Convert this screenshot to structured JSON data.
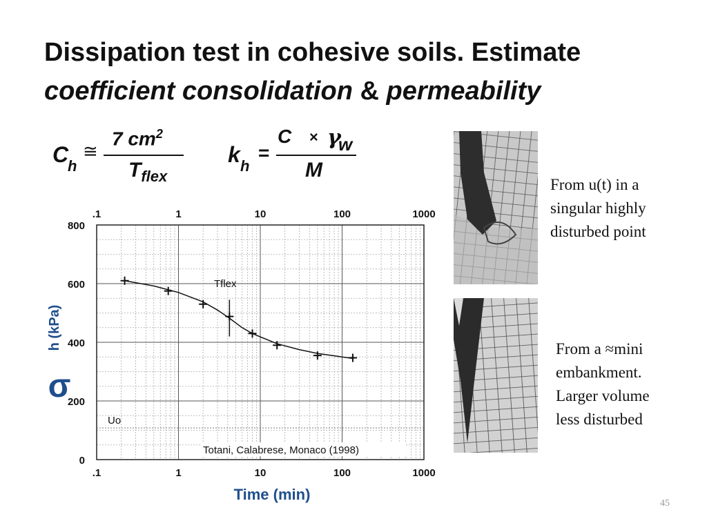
{
  "slide": {
    "title_line1": "Dissipation test in cohesive soils. Estimate",
    "title_line2_a": "coefficient consolidation",
    "title_line2_b": " & ",
    "title_line2_c": "permeability",
    "page_number": "45"
  },
  "formulas": {
    "ch": {
      "lhs": "C",
      "lhs_sub": "h",
      "approx": "≅",
      "numerator": "7 cm",
      "numerator_sup": "2",
      "denominator": "T",
      "denominator_sub": "flex"
    },
    "kh": {
      "lhs": "k",
      "lhs_sub": "h",
      "equals": "=",
      "numerator_a": "C",
      "times": "×",
      "gamma": "γ",
      "gamma_sub": "w",
      "denominator": "M"
    }
  },
  "captions": {
    "top": [
      "From u(t) in a",
      "singular highly",
      "disturbed point"
    ],
    "bottom": [
      "From a ≈mini",
      "embankment.",
      "Larger volume",
      "less disturbed"
    ]
  },
  "chart_data": {
    "type": "scatter",
    "x_scale": "log",
    "xlim": [
      0.1,
      1000
    ],
    "ylim": [
      0,
      800
    ],
    "x_tick_labels": [
      ".1",
      "1",
      "10",
      "100",
      "1000"
    ],
    "x_tick_values": [
      0.1,
      1,
      10,
      100,
      1000
    ],
    "y_tick_labels": [
      "0",
      "200",
      "400",
      "600",
      "800"
    ],
    "y_tick_values": [
      0,
      200,
      400,
      600,
      800
    ],
    "xlabel": "Time (min)",
    "ylabel_symbol": "σ",
    "ylabel_text": "h (kPa)",
    "grid": true,
    "series": [
      {
        "marker": "+",
        "x": [
          0.22,
          0.75,
          2.0,
          4.2,
          8.0,
          16,
          50,
          135
        ],
        "y": [
          610,
          575,
          530,
          488,
          430,
          390,
          355,
          347
        ]
      }
    ],
    "fit_curve": {
      "x": [
        0.22,
        0.5,
        1.0,
        2.0,
        3.0,
        4.2,
        6.0,
        8.0,
        16,
        30,
        50,
        100,
        135
      ],
      "y": [
        610,
        592,
        570,
        538,
        510,
        482,
        450,
        430,
        395,
        375,
        362,
        350,
        345
      ]
    },
    "tflex": {
      "label": "Tflex",
      "x": 4.2,
      "y_range": [
        420,
        545
      ]
    },
    "annotations": {
      "u0": "Uo",
      "u0_y": 108,
      "source": "Totani, Calabrese, Monaco (1998)"
    }
  }
}
